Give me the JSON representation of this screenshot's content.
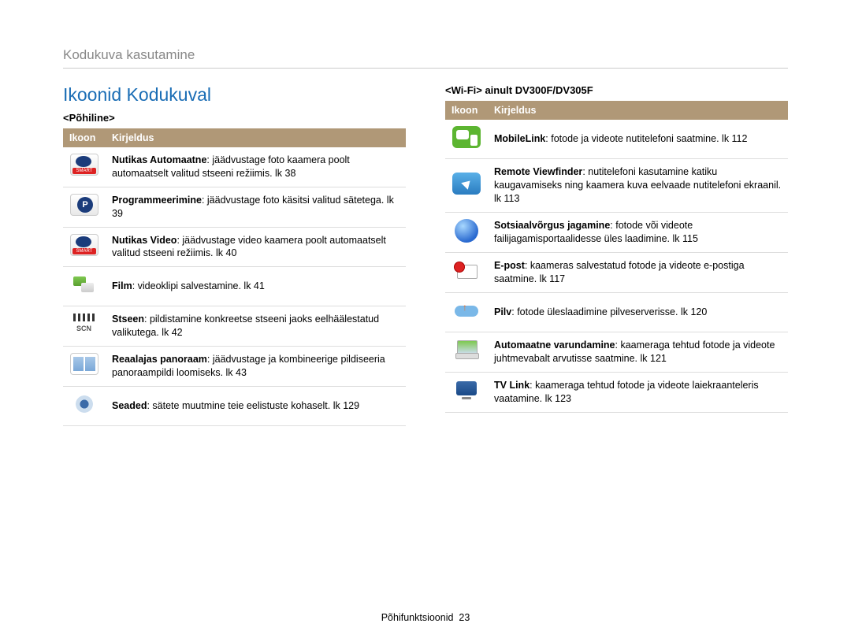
{
  "breadcrumb": "Kodukuva kasutamine",
  "section_title": "Ikoonid Kodukuval",
  "left": {
    "subtitle": "<Põhiline>",
    "headers": {
      "icon": "Ikoon",
      "desc": "Kirjeldus"
    },
    "rows": [
      {
        "icon": "ic-smart-auto",
        "bold": "Nutikas Automaatne",
        "rest": ": jäädvustage foto kaamera poolt automaatselt valitud stseeni režiimis. lk 38"
      },
      {
        "icon": "ic-program",
        "bold": "Programmeerimine",
        "rest": ": jäädvustage foto käsitsi valitud sätetega. lk 39"
      },
      {
        "icon": "ic-smart-video",
        "bold": "Nutikas Video",
        "rest": ": jäädvustage video kaamera poolt automaatselt valitud stseeni režiimis. lk 40"
      },
      {
        "icon": "ic-film",
        "bold": "Film",
        "rest": ": videoklipi salvestamine. lk 41"
      },
      {
        "icon": "ic-scene",
        "bold": "Stseen",
        "rest": ": pildistamine konkreetse stseeni jaoks eelhäälestatud valikutega. lk 42"
      },
      {
        "icon": "ic-panorama",
        "bold": "Reaalajas panoraam",
        "rest": ": jäädvustage ja kombineerige pildiseeria panoraampildi loomiseks. lk 43"
      },
      {
        "icon": "ic-settings",
        "bold": "Seaded",
        "rest": ": sätete muutmine teie eelistuste kohaselt. lk 129"
      }
    ]
  },
  "right": {
    "subtitle": "<Wi-Fi> ainult DV300F/DV305F",
    "headers": {
      "icon": "Ikoon",
      "desc": "Kirjeldus"
    },
    "rows": [
      {
        "icon": "ic-mobilelink",
        "bold": "MobileLink",
        "rest": ": fotode ja videote nutitelefoni saatmine. lk 112"
      },
      {
        "icon": "ic-remote",
        "bold": "Remote Viewfinder",
        "rest": ": nutitelefoni kasutamine katiku kaugavamiseks ning kaamera kuva eelvaade nutitelefoni ekraanil. lk 113"
      },
      {
        "icon": "ic-social",
        "bold": "Sotsiaalvõrgus jagamine",
        "rest": ": fotode või videote failijagamisportaalidesse üles laadimine. lk 115"
      },
      {
        "icon": "ic-email",
        "bold": "E-post",
        "rest": ": kaameras salvestatud fotode ja videote e-postiga saatmine. lk 117"
      },
      {
        "icon": "ic-cloud",
        "bold": "Pilv",
        "rest": ": fotode üleslaadimine pilveserverisse. lk 120"
      },
      {
        "icon": "ic-backup",
        "bold": "Automaatne varundamine",
        "rest": ": kaameraga tehtud fotode ja videote juhtmevabalt arvutisse saatmine. lk 121"
      },
      {
        "icon": "ic-tvlink",
        "bold": "TV Link",
        "rest": ": kaameraga tehtud fotode ja videote laiekraanteleris vaatamine. lk 123"
      }
    ]
  },
  "footer": {
    "label": "Põhifunktsioonid",
    "page": "23"
  }
}
